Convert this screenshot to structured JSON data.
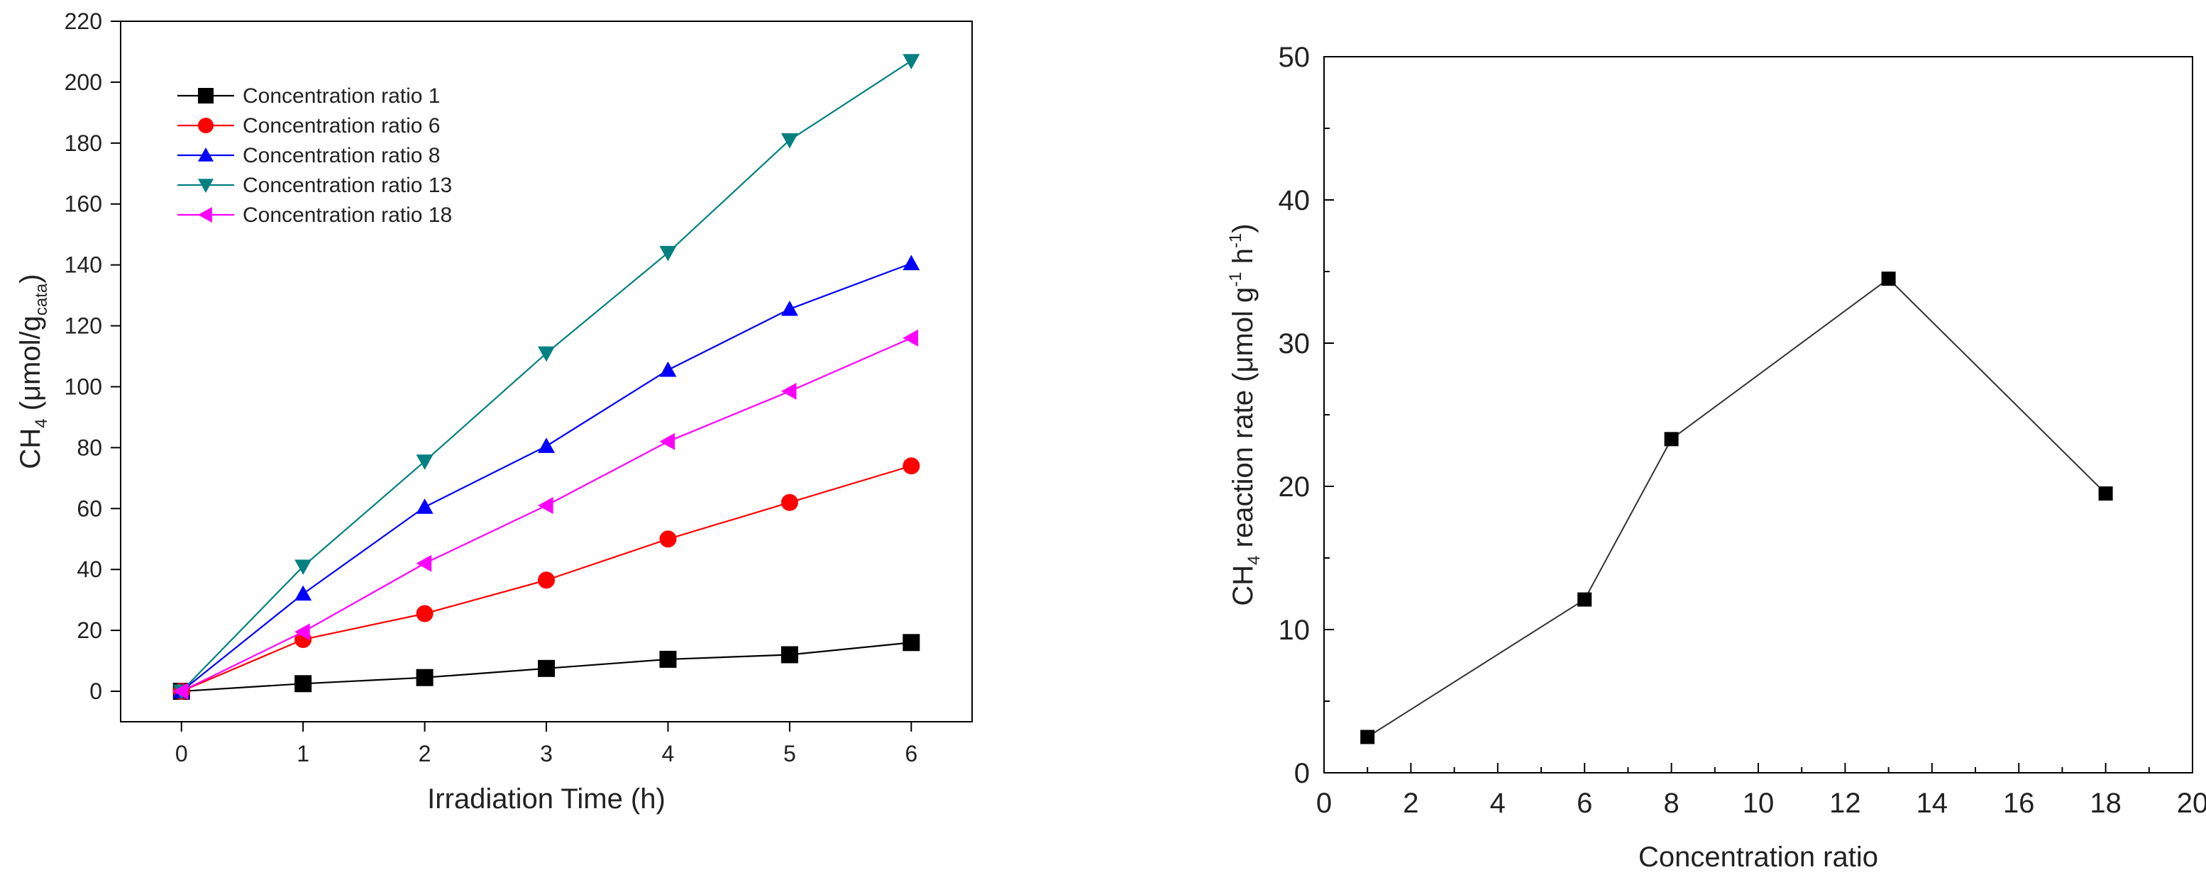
{
  "chart_data": [
    {
      "type": "line",
      "title": "",
      "xlabel": "Irradiation Time (h)",
      "ylabel": {
        "main": "CH",
        "sub": "4",
        "unit_prefix": " (μmol/g",
        "unit_sub": "cata",
        "unit_suffix": ")"
      },
      "xlim": [
        -0.5,
        6.5
      ],
      "ylim": [
        -10,
        220
      ],
      "xticks": [
        0,
        1,
        2,
        3,
        4,
        5,
        6
      ],
      "yticks": [
        0,
        20,
        40,
        60,
        80,
        100,
        120,
        140,
        160,
        180,
        200,
        220
      ],
      "grid": false,
      "legend_position": "top-left",
      "x": [
        0,
        1,
        2,
        3,
        4,
        5,
        6
      ],
      "series": [
        {
          "name": "Concentration ratio 1",
          "color": "#000000",
          "marker": "square",
          "values": [
            0,
            2.5,
            4.5,
            7.5,
            10.5,
            12,
            16
          ]
        },
        {
          "name": "Concentration ratio 6",
          "color": "#ff0000",
          "marker": "circle",
          "values": [
            0,
            17,
            25.5,
            36.5,
            50,
            62,
            74
          ]
        },
        {
          "name": "Concentration ratio 8",
          "color": "#0000ff",
          "marker": "triangle-up",
          "values": [
            0,
            32,
            60.5,
            80.5,
            105.5,
            125.5,
            140.5
          ]
        },
        {
          "name": "Concentration ratio 13",
          "color": "#008080",
          "marker": "triangle-down",
          "values": [
            0,
            41,
            75.5,
            111,
            144,
            181,
            207
          ]
        },
        {
          "name": "Concentration ratio 18",
          "color": "#ff00ff",
          "marker": "triangle-left",
          "values": [
            0,
            19.5,
            42,
            61,
            82,
            98.5,
            116
          ]
        }
      ]
    },
    {
      "type": "line",
      "title": "",
      "xlabel": "Concentration ratio",
      "ylabel": {
        "main": "CH",
        "sub": "4",
        "rest1": " reaction rate (μmol g",
        "sup1": "-1",
        "rest2": " h",
        "sup2": "-1",
        "rest3": ")"
      },
      "xlim": [
        0,
        20
      ],
      "ylim": [
        0,
        50
      ],
      "xticks": [
        0,
        2,
        4,
        6,
        8,
        10,
        12,
        14,
        16,
        18,
        20
      ],
      "yticks": [
        0,
        10,
        20,
        30,
        40,
        50
      ],
      "grid": false,
      "series": [
        {
          "name": "CH4 reaction rate",
          "color": "#000000",
          "marker": "square",
          "x": [
            1,
            6,
            8,
            13,
            18
          ],
          "values": [
            2.5,
            12.1,
            23.3,
            34.5,
            19.5
          ]
        }
      ]
    }
  ]
}
